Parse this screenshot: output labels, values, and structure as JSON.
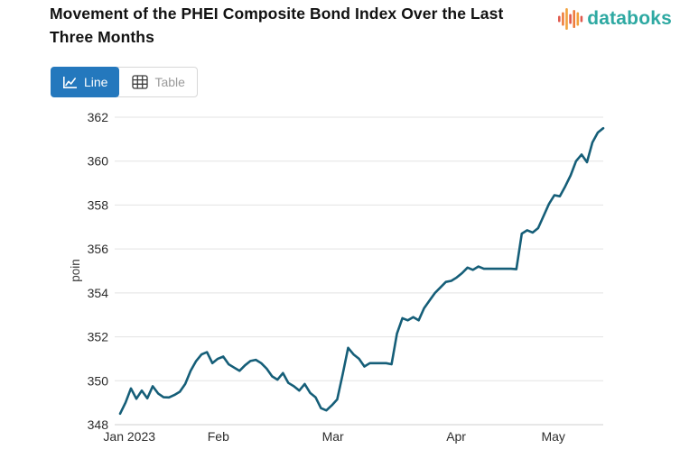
{
  "header": {
    "title": "Movement of the PHEI Composite Bond Index Over the Last Three Months",
    "brand": "databoks"
  },
  "toolbar": {
    "line_label": "Line",
    "table_label": "Table"
  },
  "colors": {
    "accent_blue": "#2478BD",
    "brand_teal": "#2EA9A2",
    "series_line": "#155E78",
    "grid_line": "#e3e3e3",
    "axis_bottom_line": "#cfcfcf",
    "tick_text": "#2d2d2d",
    "axis_title_text": "#3a3a3a",
    "logo_bar_colors": [
      "#e05a4e",
      "#ef7d3b",
      "#f2a13c",
      "#e05a4e",
      "#ef7d3b",
      "#f2a13c",
      "#e05a4e"
    ]
  },
  "chart_data": {
    "type": "line",
    "title": "Movement of the PHEI Composite Bond Index Over the Last Three Months",
    "ylabel": "poin",
    "ylim": [
      348,
      362
    ],
    "ytick_step": 2,
    "grid": true,
    "legend_position": "none",
    "xticks": [
      {
        "label": "Jan 2023",
        "index": 1.7
      },
      {
        "label": "Feb",
        "index": 18.1
      },
      {
        "label": "Mar",
        "index": 39.2
      },
      {
        "label": "Apr",
        "index": 61.9
      },
      {
        "label": "May",
        "index": 79.8
      }
    ],
    "values": [
      348.5,
      349.0,
      349.65,
      349.18,
      349.55,
      349.2,
      349.75,
      349.42,
      349.25,
      349.24,
      349.35,
      349.5,
      349.85,
      350.45,
      350.9,
      351.2,
      351.3,
      350.8,
      351.0,
      351.1,
      350.75,
      350.6,
      350.45,
      350.7,
      350.9,
      350.95,
      350.8,
      350.55,
      350.2,
      350.05,
      350.35,
      349.9,
      349.75,
      349.55,
      349.85,
      349.45,
      349.25,
      348.75,
      348.65,
      348.88,
      349.15,
      350.3,
      351.5,
      351.2,
      351.0,
      350.65,
      350.8,
      350.8,
      350.8,
      350.8,
      350.75,
      352.15,
      352.85,
      352.75,
      352.9,
      352.75,
      353.3,
      353.65,
      354.0,
      354.25,
      354.5,
      354.55,
      354.7,
      354.9,
      355.15,
      355.05,
      355.2,
      355.1,
      355.1,
      355.1,
      355.1,
      355.1,
      355.1,
      355.08,
      356.7,
      356.85,
      356.75,
      356.95,
      357.5,
      358.05,
      358.45,
      358.4,
      358.85,
      359.35,
      360.0,
      360.3,
      359.95,
      360.85,
      361.3,
      361.5
    ]
  }
}
